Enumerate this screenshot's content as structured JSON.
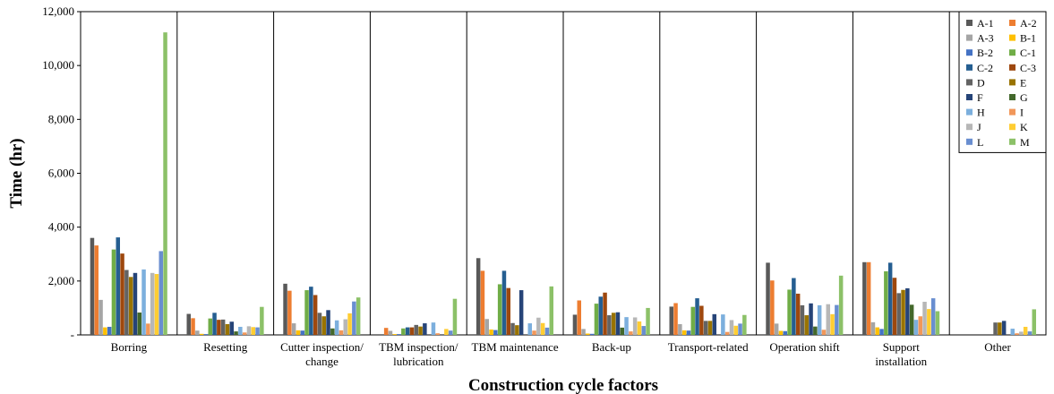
{
  "chart_data": {
    "type": "bar",
    "xlabel": "Construction cycle factors",
    "ylabel": "Time (hr)",
    "ylim": [
      0,
      12000
    ],
    "yticks": [
      "-",
      "2,000",
      "4,000",
      "6,000",
      "8,000",
      "10,000",
      "12,000"
    ],
    "legend_position": "top-right",
    "grid": false,
    "categories": [
      [
        "Borring"
      ],
      [
        "Resetting"
      ],
      [
        "Cutter inspection/",
        "change"
      ],
      [
        "TBM inspection/",
        "lubrication"
      ],
      [
        "TBM maintenance"
      ],
      [
        "Back-up"
      ],
      [
        "Transport-related"
      ],
      [
        "Operation shift"
      ],
      [
        "Support",
        "installation"
      ],
      [
        "Other"
      ]
    ],
    "series": [
      {
        "name": "A-1",
        "color": "#595959",
        "values": [
          3600,
          780,
          1900,
          0,
          2850,
          750,
          1050,
          2680,
          2700,
          0
        ]
      },
      {
        "name": "A-2",
        "color": "#ED7D31",
        "values": [
          3320,
          620,
          1640,
          260,
          2380,
          1280,
          1180,
          2020,
          2700,
          0
        ]
      },
      {
        "name": "A-3",
        "color": "#A5A5A5",
        "values": [
          1300,
          160,
          430,
          150,
          590,
          220,
          400,
          420,
          470,
          0
        ]
      },
      {
        "name": "B-1",
        "color": "#FFC000",
        "values": [
          280,
          40,
          170,
          30,
          200,
          50,
          170,
          150,
          280,
          0
        ]
      },
      {
        "name": "B-2",
        "color": "#4472C4",
        "values": [
          300,
          30,
          160,
          30,
          180,
          40,
          160,
          140,
          220,
          0
        ]
      },
      {
        "name": "C-1",
        "color": "#70AD47",
        "values": [
          3170,
          610,
          1660,
          240,
          1880,
          1160,
          1040,
          1680,
          2360,
          0
        ]
      },
      {
        "name": "C-2",
        "color": "#255E91",
        "values": [
          3620,
          820,
          1790,
          280,
          2380,
          1420,
          1360,
          2110,
          2680,
          0
        ]
      },
      {
        "name": "C-3",
        "color": "#9E480E",
        "values": [
          3020,
          560,
          1480,
          280,
          1740,
          1570,
          1080,
          1530,
          2120,
          0
        ]
      },
      {
        "name": "D",
        "color": "#636363",
        "values": [
          2410,
          570,
          820,
          370,
          440,
          730,
          520,
          1100,
          1550,
          460
        ]
      },
      {
        "name": "E",
        "color": "#997300",
        "values": [
          2150,
          400,
          690,
          310,
          360,
          820,
          520,
          730,
          1670,
          460
        ]
      },
      {
        "name": "F",
        "color": "#264478",
        "values": [
          2300,
          490,
          920,
          430,
          1660,
          840,
          770,
          1170,
          1730,
          520
        ]
      },
      {
        "name": "G",
        "color": "#43682B",
        "values": [
          830,
          130,
          240,
          0,
          0,
          270,
          0,
          310,
          1120,
          0
        ]
      },
      {
        "name": "H",
        "color": "#7CAFDD",
        "values": [
          2430,
          300,
          540,
          460,
          430,
          660,
          760,
          1100,
          560,
          230
        ]
      },
      {
        "name": "I",
        "color": "#F1975A",
        "values": [
          420,
          90,
          170,
          60,
          160,
          130,
          110,
          190,
          690,
          60
        ]
      },
      {
        "name": "J",
        "color": "#B7B7B7",
        "values": [
          2300,
          320,
          580,
          0,
          640,
          650,
          550,
          1140,
          1230,
          120
        ]
      },
      {
        "name": "K",
        "color": "#FFCD33",
        "values": [
          2260,
          290,
          800,
          220,
          440,
          500,
          340,
          770,
          960,
          300
        ]
      },
      {
        "name": "L",
        "color": "#698ED0",
        "values": [
          3110,
          280,
          1240,
          160,
          270,
          330,
          420,
          1110,
          1360,
          130
        ]
      },
      {
        "name": "M",
        "color": "#8CC168",
        "values": [
          11230,
          1040,
          1390,
          1340,
          1800,
          1000,
          740,
          2200,
          880,
          950
        ]
      }
    ]
  }
}
